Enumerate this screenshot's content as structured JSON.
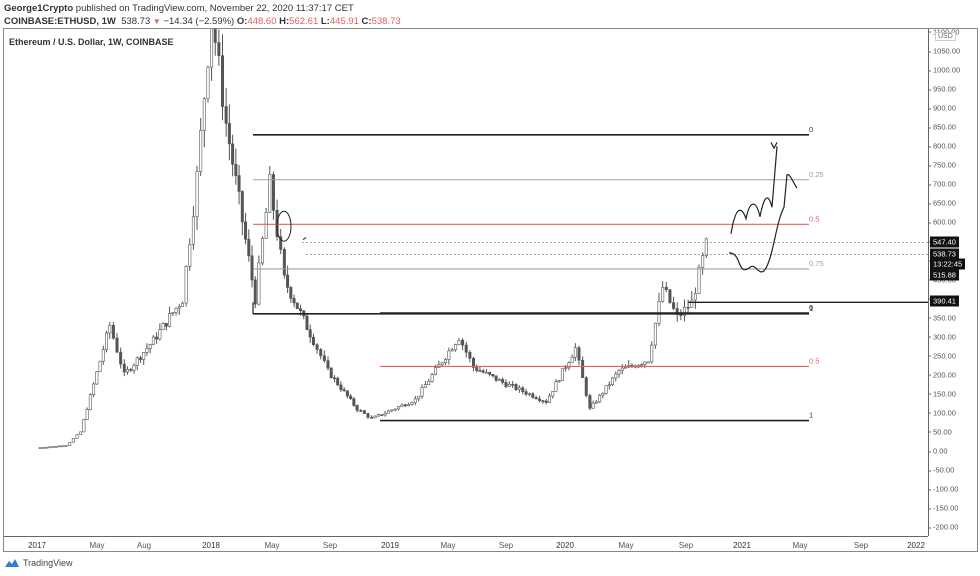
{
  "header": {
    "author": "George1Crypto",
    "published_text": "published on TradingView.com, November 22, 2020 11:37:17 CET",
    "symbol": "COINBASE:ETHUSD, 1W",
    "last_price": "538.73",
    "change_arrow": "▼",
    "change": "−14.34 (−2.59%)",
    "open_label": "O:",
    "open": "448.60",
    "high_label": "H:",
    "high": "562.61",
    "low_label": "L:",
    "low": "445.91",
    "close_label": "C:",
    "close": "538.73"
  },
  "chart_title": "Ethereum / U.S. Dollar, 1W, COINBASE",
  "currency_label": "USD",
  "price_tags": [
    {
      "label": "547.40",
      "value": 547.4
    },
    {
      "label": "538.73",
      "value": 538.73
    },
    {
      "label": "13:22:45",
      "value": 513
    },
    {
      "label": "515.88",
      "value": 489
    },
    {
      "label": "390.41",
      "value": 390.41
    }
  ],
  "footer": {
    "brand": "TradingView"
  },
  "colors": {
    "fib_red": "#e0625f",
    "fib_gray": "#a0a0a0",
    "candle": "#555555",
    "line": "#222222"
  },
  "chart_data": {
    "type": "candlestick",
    "title": "Ethereum / U.S. Dollar, 1W, COINBASE",
    "xlabel": "",
    "ylabel": "USD",
    "ylim": [
      -225,
      1100
    ],
    "y_ticks": [
      "1100.00",
      "1050.00",
      "1000.00",
      "950.00",
      "900.00",
      "850.00",
      "800.00",
      "750.00",
      "700.00",
      "650.00",
      "600.00",
      "550.00",
      "500.00",
      "450.00",
      "400.00",
      "350.00",
      "300.00",
      "250.00",
      "200.00",
      "150.00",
      "100.00",
      "50.00",
      "0.00",
      "-50.00",
      "-100.00",
      "-150.00",
      "-200.00"
    ],
    "x_ticks": [
      {
        "label": "2017",
        "year": true
      },
      {
        "label": "May"
      },
      {
        "label": "Aug"
      },
      {
        "label": "2018",
        "year": true
      },
      {
        "label": "May"
      },
      {
        "label": "Sep"
      },
      {
        "label": "2019",
        "year": true
      },
      {
        "label": "May"
      },
      {
        "label": "Sep"
      },
      {
        "label": "2020",
        "year": true
      },
      {
        "label": "May"
      },
      {
        "label": "Sep"
      },
      {
        "label": "2021",
        "year": true
      },
      {
        "label": "May"
      },
      {
        "label": "Sep"
      },
      {
        "label": "2022",
        "year": true
      }
    ],
    "grid": false,
    "series_approx_weekly_close": [
      {
        "date": "2017-01",
        "close": 8
      },
      {
        "date": "2017-03",
        "close": 15
      },
      {
        "date": "2017-04",
        "close": 50
      },
      {
        "date": "2017-06",
        "close": 330
      },
      {
        "date": "2017-07",
        "close": 200
      },
      {
        "date": "2017-09",
        "close": 290
      },
      {
        "date": "2017-11",
        "close": 400
      },
      {
        "date": "2017-12",
        "close": 720
      },
      {
        "date": "2018-01",
        "close": 1150
      },
      {
        "date": "2018-02",
        "close": 860
      },
      {
        "date": "2018-04",
        "close": 400
      },
      {
        "date": "2018-05",
        "close": 700
      },
      {
        "date": "2018-06",
        "close": 450
      },
      {
        "date": "2018-08",
        "close": 290
      },
      {
        "date": "2018-09",
        "close": 210
      },
      {
        "date": "2018-11",
        "close": 110
      },
      {
        "date": "2018-12",
        "close": 85
      },
      {
        "date": "2019-03",
        "close": 135
      },
      {
        "date": "2019-06",
        "close": 300
      },
      {
        "date": "2019-07",
        "close": 220
      },
      {
        "date": "2019-09",
        "close": 180
      },
      {
        "date": "2019-12",
        "close": 130
      },
      {
        "date": "2020-02",
        "close": 270
      },
      {
        "date": "2020-03",
        "close": 110
      },
      {
        "date": "2020-05",
        "close": 210
      },
      {
        "date": "2020-07",
        "close": 240
      },
      {
        "date": "2020-08",
        "close": 430
      },
      {
        "date": "2020-09",
        "close": 350
      },
      {
        "date": "2020-10",
        "close": 390
      },
      {
        "date": "2020-11",
        "close": 538.73
      }
    ],
    "annotations": {
      "fib_upper": [
        {
          "level": "0",
          "price": 830,
          "color": "#222222"
        },
        {
          "level": "0.25",
          "price": 712,
          "color": "#a0a0a0"
        },
        {
          "level": "0.5",
          "price": 595,
          "color": "#e0625f"
        },
        {
          "level": "0.75",
          "price": 478,
          "color": "#a0a0a0"
        },
        {
          "level": "1",
          "price": 360,
          "color": "#222222"
        }
      ],
      "fib_lower": [
        {
          "level": "0",
          "price": 362,
          "color": "#222222"
        },
        {
          "level": "0.5",
          "price": 222,
          "color": "#e0625f"
        },
        {
          "level": "1",
          "price": 80,
          "color": "#222222"
        }
      ],
      "horizontal_lines": [
        {
          "price": 547.4,
          "style": "dotted"
        },
        {
          "price": 515.88,
          "style": "dotted"
        },
        {
          "price": 390.41,
          "style": "solid"
        }
      ],
      "projected_paths": [
        "bullish zigzag to ~800",
        "bearish dip then rally to ~720"
      ]
    }
  }
}
